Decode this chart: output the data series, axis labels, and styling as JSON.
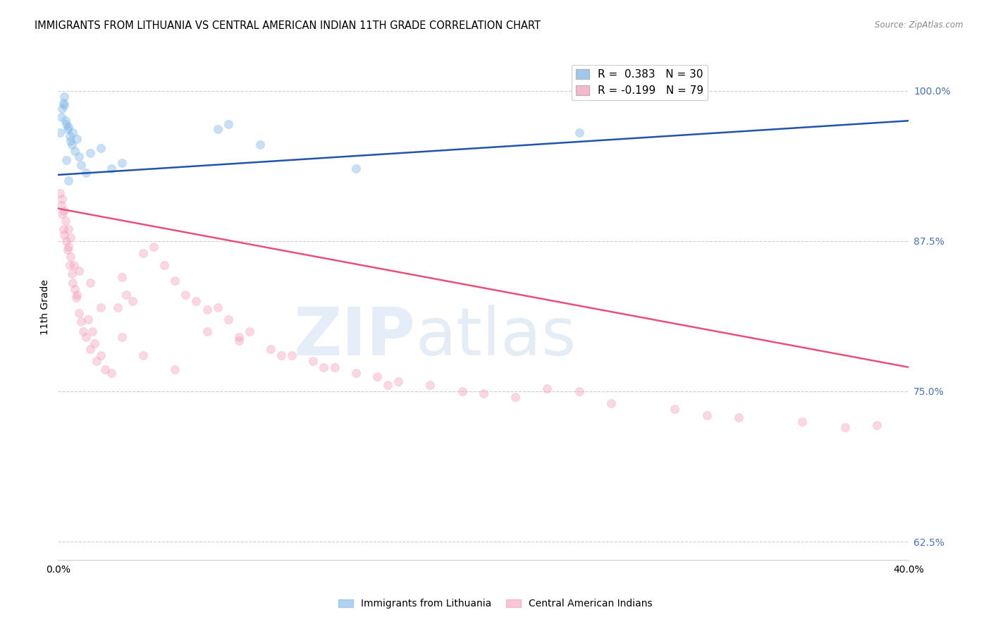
{
  "title": "IMMIGRANTS FROM LITHUANIA VS CENTRAL AMERICAN INDIAN 11TH GRADE CORRELATION CHART",
  "source": "Source: ZipAtlas.com",
  "ylabel": "11th Grade",
  "xlim": [
    0.0,
    40.0
  ],
  "ylim": [
    61.0,
    103.0
  ],
  "yticks": [
    62.5,
    75.0,
    87.5,
    100.0
  ],
  "ytick_labels": [
    "62.5%",
    "75.0%",
    "87.5%",
    "100.0%"
  ],
  "xticks": [
    0.0,
    8.0,
    16.0,
    24.0,
    32.0,
    40.0
  ],
  "xtick_labels": [
    "0.0%",
    "",
    "",
    "",
    "",
    "40.0%"
  ],
  "legend_blue_label": "R =  0.383   N = 30",
  "legend_pink_label": "R = -0.199   N = 79",
  "blue_color": "#7EB6E8",
  "pink_color": "#F4A0BC",
  "blue_line_color": "#2255AA",
  "pink_line_color": "#E8507A",
  "blue_scatter_x": [
    0.1,
    0.15,
    0.2,
    0.25,
    0.3,
    0.35,
    0.4,
    0.45,
    0.5,
    0.55,
    0.6,
    0.65,
    0.7,
    0.8,
    0.9,
    1.0,
    1.1,
    1.5,
    2.0,
    2.5,
    3.0,
    1.3,
    0.3,
    0.5,
    7.5,
    8.0,
    9.5,
    14.0,
    24.5,
    0.4
  ],
  "blue_scatter_y": [
    96.5,
    97.8,
    98.5,
    99.0,
    98.8,
    97.5,
    97.2,
    96.8,
    97.0,
    96.2,
    95.8,
    95.5,
    96.5,
    95.0,
    96.0,
    94.5,
    93.8,
    94.8,
    95.2,
    93.5,
    94.0,
    93.2,
    99.5,
    92.5,
    96.8,
    97.2,
    95.5,
    93.5,
    96.5,
    94.2
  ],
  "pink_scatter_x": [
    0.1,
    0.15,
    0.2,
    0.25,
    0.3,
    0.35,
    0.4,
    0.45,
    0.5,
    0.55,
    0.6,
    0.65,
    0.7,
    0.75,
    0.8,
    0.85,
    0.9,
    1.0,
    1.1,
    1.2,
    1.3,
    1.4,
    1.5,
    1.6,
    1.7,
    1.8,
    2.0,
    2.2,
    2.5,
    2.8,
    3.0,
    3.2,
    3.5,
    4.0,
    4.5,
    5.0,
    5.5,
    6.0,
    6.5,
    7.0,
    7.5,
    8.0,
    8.5,
    9.0,
    10.0,
    11.0,
    12.0,
    13.0,
    14.0,
    15.0,
    16.0,
    17.5,
    19.0,
    20.0,
    21.5,
    23.0,
    24.5,
    26.0,
    29.0,
    30.5,
    32.0,
    35.0,
    37.0,
    38.5,
    0.2,
    0.3,
    0.5,
    0.6,
    1.0,
    1.5,
    2.0,
    3.0,
    4.0,
    5.5,
    7.0,
    8.5,
    10.5,
    12.5,
    15.5
  ],
  "pink_scatter_y": [
    91.5,
    90.5,
    89.8,
    88.5,
    88.0,
    89.2,
    87.5,
    86.8,
    87.0,
    85.5,
    86.2,
    84.8,
    84.0,
    85.5,
    83.5,
    82.8,
    83.0,
    81.5,
    80.8,
    80.0,
    79.5,
    81.0,
    78.5,
    80.0,
    79.0,
    77.5,
    78.0,
    76.8,
    76.5,
    82.0,
    84.5,
    83.0,
    82.5,
    86.5,
    87.0,
    85.5,
    84.2,
    83.0,
    82.5,
    81.8,
    82.0,
    81.0,
    79.5,
    80.0,
    78.5,
    78.0,
    77.5,
    77.0,
    76.5,
    76.2,
    75.8,
    75.5,
    75.0,
    74.8,
    74.5,
    75.2,
    75.0,
    74.0,
    73.5,
    73.0,
    72.8,
    72.5,
    72.0,
    72.2,
    91.0,
    90.0,
    88.5,
    87.8,
    85.0,
    84.0,
    82.0,
    79.5,
    78.0,
    76.8,
    80.0,
    79.2,
    78.0,
    77.0,
    75.5
  ],
  "blue_line_x": [
    0.0,
    40.0
  ],
  "blue_line_y": [
    93.0,
    97.5
  ],
  "pink_line_x": [
    0.0,
    40.0
  ],
  "pink_line_y": [
    90.2,
    77.0
  ],
  "background_color": "#FFFFFF",
  "grid_color": "#CCCCCC",
  "title_fontsize": 10.5,
  "scatter_size": 75,
  "scatter_alpha": 0.42,
  "legend_blue_patch_color": "#7EB6E8",
  "legend_pink_patch_color": "#F4A0BC"
}
